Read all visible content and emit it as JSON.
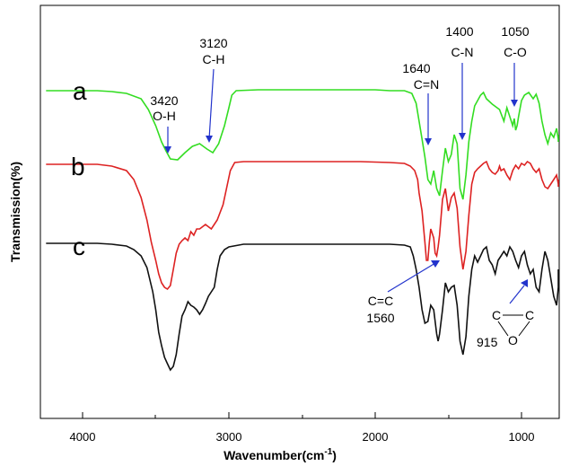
{
  "chart_data": {
    "type": "line",
    "xlabel": "Wavenumber(cm",
    "xlabel_sup": "-1",
    "xlabel_close": ")",
    "ylabel": "Transmission(%)",
    "xlim": [
      4250,
      700
    ],
    "x_reversed": true,
    "x_ticks": [
      4000,
      3000,
      2000,
      1000
    ],
    "y_ticks_shown": false,
    "grid": false,
    "legend": "none",
    "series": [
      {
        "name": "a",
        "color": "#33dd22",
        "points": [
          [
            4250,
            101
          ],
          [
            3900,
            101
          ],
          [
            3800,
            102
          ],
          [
            3700,
            104
          ],
          [
            3600,
            110
          ],
          [
            3550,
            122
          ],
          [
            3500,
            140
          ],
          [
            3460,
            158
          ],
          [
            3430,
            168
          ],
          [
            3400,
            177
          ],
          [
            3350,
            178
          ],
          [
            3300,
            170
          ],
          [
            3250,
            163
          ],
          [
            3200,
            160
          ],
          [
            3150,
            166
          ],
          [
            3110,
            170
          ],
          [
            3070,
            160
          ],
          [
            3030,
            140
          ],
          [
            3000,
            120
          ],
          [
            2980,
            106
          ],
          [
            2950,
            101
          ],
          [
            2800,
            100
          ],
          [
            2600,
            100
          ],
          [
            2400,
            100
          ],
          [
            2200,
            100
          ],
          [
            2000,
            100
          ],
          [
            1900,
            101
          ],
          [
            1800,
            101
          ],
          [
            1750,
            104
          ],
          [
            1720,
            115
          ],
          [
            1700,
            135
          ],
          [
            1680,
            155
          ],
          [
            1660,
            175
          ],
          [
            1640,
            200
          ],
          [
            1620,
            205
          ],
          [
            1600,
            190
          ],
          [
            1580,
            210
          ],
          [
            1560,
            218
          ],
          [
            1540,
            190
          ],
          [
            1520,
            165
          ],
          [
            1500,
            180
          ],
          [
            1480,
            172
          ],
          [
            1460,
            150
          ],
          [
            1440,
            160
          ],
          [
            1420,
            210
          ],
          [
            1400,
            222
          ],
          [
            1380,
            195
          ],
          [
            1360,
            158
          ],
          [
            1340,
            135
          ],
          [
            1320,
            118
          ],
          [
            1300,
            112
          ],
          [
            1280,
            106
          ],
          [
            1260,
            103
          ],
          [
            1240,
            110
          ],
          [
            1200,
            116
          ],
          [
            1150,
            122
          ],
          [
            1120,
            135
          ],
          [
            1100,
            120
          ],
          [
            1080,
            130
          ],
          [
            1060,
            140
          ],
          [
            1050,
            132
          ],
          [
            1040,
            145
          ],
          [
            1030,
            140
          ],
          [
            1020,
            130
          ],
          [
            1000,
            112
          ],
          [
            980,
            106
          ],
          [
            950,
            103
          ],
          [
            920,
            110
          ],
          [
            900,
            105
          ],
          [
            880,
            115
          ],
          [
            860,
            135
          ],
          [
            840,
            150
          ],
          [
            820,
            160
          ],
          [
            800,
            148
          ],
          [
            780,
            153
          ],
          [
            760,
            143
          ],
          [
            740,
            155
          ],
          [
            720,
            158
          ],
          [
            700,
            150
          ]
        ]
      },
      {
        "name": "b",
        "color": "#dd2222",
        "points": [
          [
            4250,
            183
          ],
          [
            3900,
            183
          ],
          [
            3800,
            185
          ],
          [
            3700,
            190
          ],
          [
            3650,
            200
          ],
          [
            3600,
            220
          ],
          [
            3560,
            245
          ],
          [
            3530,
            270
          ],
          [
            3500,
            290
          ],
          [
            3480,
            305
          ],
          [
            3460,
            315
          ],
          [
            3440,
            320
          ],
          [
            3420,
            322
          ],
          [
            3400,
            318
          ],
          [
            3380,
            300
          ],
          [
            3360,
            282
          ],
          [
            3340,
            272
          ],
          [
            3320,
            268
          ],
          [
            3300,
            265
          ],
          [
            3280,
            268
          ],
          [
            3260,
            258
          ],
          [
            3240,
            262
          ],
          [
            3220,
            255
          ],
          [
            3200,
            255
          ],
          [
            3160,
            250
          ],
          [
            3120,
            255
          ],
          [
            3080,
            245
          ],
          [
            3040,
            228
          ],
          [
            3010,
            205
          ],
          [
            2990,
            190
          ],
          [
            2960,
            181
          ],
          [
            2900,
            180
          ],
          [
            2700,
            180
          ],
          [
            2500,
            180
          ],
          [
            2300,
            180
          ],
          [
            2100,
            180
          ],
          [
            1900,
            181
          ],
          [
            1800,
            182
          ],
          [
            1760,
            185
          ],
          [
            1730,
            190
          ],
          [
            1710,
            200
          ],
          [
            1700,
            215
          ],
          [
            1680,
            235
          ],
          [
            1660,
            270
          ],
          [
            1650,
            290
          ],
          [
            1640,
            290
          ],
          [
            1630,
            270
          ],
          [
            1620,
            255
          ],
          [
            1600,
            265
          ],
          [
            1590,
            282
          ],
          [
            1580,
            285
          ],
          [
            1570,
            275
          ],
          [
            1560,
            262
          ],
          [
            1540,
            222
          ],
          [
            1520,
            210
          ],
          [
            1500,
            235
          ],
          [
            1480,
            220
          ],
          [
            1460,
            215
          ],
          [
            1440,
            232
          ],
          [
            1420,
            275
          ],
          [
            1400,
            300
          ],
          [
            1380,
            280
          ],
          [
            1360,
            240
          ],
          [
            1340,
            205
          ],
          [
            1320,
            192
          ],
          [
            1300,
            188
          ],
          [
            1280,
            185
          ],
          [
            1260,
            182
          ],
          [
            1240,
            180
          ],
          [
            1220,
            188
          ],
          [
            1200,
            192
          ],
          [
            1180,
            194
          ],
          [
            1160,
            190
          ],
          [
            1150,
            185
          ],
          [
            1140,
            190
          ],
          [
            1120,
            188
          ],
          [
            1100,
            195
          ],
          [
            1080,
            200
          ],
          [
            1060,
            190
          ],
          [
            1040,
            184
          ],
          [
            1020,
            188
          ],
          [
            1000,
            182
          ],
          [
            980,
            184
          ],
          [
            960,
            180
          ],
          [
            940,
            182
          ],
          [
            920,
            188
          ],
          [
            900,
            192
          ],
          [
            880,
            188
          ],
          [
            860,
            200
          ],
          [
            840,
            208
          ],
          [
            820,
            210
          ],
          [
            800,
            205
          ],
          [
            780,
            200
          ],
          [
            760,
            195
          ],
          [
            740,
            205
          ],
          [
            720,
            208
          ],
          [
            700,
            200
          ]
        ]
      },
      {
        "name": "c",
        "color": "#111111",
        "points": [
          [
            4250,
            271
          ],
          [
            3900,
            271
          ],
          [
            3800,
            272
          ],
          [
            3700,
            274
          ],
          [
            3650,
            278
          ],
          [
            3600,
            285
          ],
          [
            3560,
            298
          ],
          [
            3520,
            325
          ],
          [
            3500,
            345
          ],
          [
            3480,
            370
          ],
          [
            3460,
            385
          ],
          [
            3440,
            398
          ],
          [
            3420,
            405
          ],
          [
            3400,
            412
          ],
          [
            3380,
            408
          ],
          [
            3360,
            395
          ],
          [
            3340,
            372
          ],
          [
            3320,
            352
          ],
          [
            3300,
            345
          ],
          [
            3280,
            336
          ],
          [
            3260,
            340
          ],
          [
            3240,
            342
          ],
          [
            3220,
            345
          ],
          [
            3200,
            350
          ],
          [
            3180,
            345
          ],
          [
            3160,
            338
          ],
          [
            3140,
            330
          ],
          [
            3100,
            320
          ],
          [
            3080,
            300
          ],
          [
            3060,
            285
          ],
          [
            3030,
            278
          ],
          [
            3000,
            275
          ],
          [
            2900,
            272
          ],
          [
            2700,
            272
          ],
          [
            2500,
            272
          ],
          [
            2300,
            272
          ],
          [
            2100,
            272
          ],
          [
            1900,
            272
          ],
          [
            1800,
            273
          ],
          [
            1760,
            275
          ],
          [
            1740,
            285
          ],
          [
            1720,
            300
          ],
          [
            1700,
            320
          ],
          [
            1680,
            345
          ],
          [
            1660,
            360
          ],
          [
            1640,
            358
          ],
          [
            1620,
            340
          ],
          [
            1600,
            345
          ],
          [
            1580,
            372
          ],
          [
            1570,
            380
          ],
          [
            1560,
            372
          ],
          [
            1540,
            345
          ],
          [
            1520,
            315
          ],
          [
            1500,
            325
          ],
          [
            1480,
            320
          ],
          [
            1460,
            318
          ],
          [
            1440,
            340
          ],
          [
            1420,
            380
          ],
          [
            1400,
            395
          ],
          [
            1380,
            375
          ],
          [
            1360,
            330
          ],
          [
            1340,
            300
          ],
          [
            1320,
            285
          ],
          [
            1300,
            292
          ],
          [
            1280,
            285
          ],
          [
            1260,
            278
          ],
          [
            1240,
            275
          ],
          [
            1220,
            290
          ],
          [
            1200,
            295
          ],
          [
            1180,
            305
          ],
          [
            1160,
            290
          ],
          [
            1140,
            285
          ],
          [
            1120,
            280
          ],
          [
            1100,
            285
          ],
          [
            1080,
            275
          ],
          [
            1060,
            280
          ],
          [
            1040,
            290
          ],
          [
            1020,
            298
          ],
          [
            1000,
            285
          ],
          [
            980,
            280
          ],
          [
            960,
            295
          ],
          [
            940,
            305
          ],
          [
            920,
            300
          ],
          [
            900,
            320
          ],
          [
            880,
            325
          ],
          [
            860,
            300
          ],
          [
            840,
            280
          ],
          [
            820,
            290
          ],
          [
            800,
            310
          ],
          [
            780,
            330
          ],
          [
            760,
            340
          ],
          [
            740,
            320
          ],
          [
            720,
            305
          ],
          [
            700,
            300
          ]
        ]
      }
    ],
    "series_labels": [
      {
        "id": "a",
        "text": "a"
      },
      {
        "id": "b",
        "text": "b"
      },
      {
        "id": "c",
        "text": "c"
      }
    ],
    "annotations": [
      {
        "id": "ann-3420",
        "lines": [
          "3420",
          "O-H"
        ],
        "x": 3420
      },
      {
        "id": "ann-3120",
        "lines": [
          "3120",
          "C-H"
        ],
        "x": 3120
      },
      {
        "id": "ann-1640",
        "lines": [
          "1640",
          "C=N"
        ],
        "x": 1640
      },
      {
        "id": "ann-1400",
        "lines": [
          "1400",
          "C-N"
        ],
        "x": 1400
      },
      {
        "id": "ann-1050",
        "lines": [
          "1050",
          "C-O"
        ],
        "x": 1050
      },
      {
        "id": "ann-1560",
        "lines": [
          "C=C",
          "1560"
        ],
        "x": 1560
      },
      {
        "id": "ann-915",
        "lines": [
          "C",
          "C",
          "O",
          "915"
        ],
        "x": 915
      }
    ],
    "arrow_color": "#2233cc"
  }
}
